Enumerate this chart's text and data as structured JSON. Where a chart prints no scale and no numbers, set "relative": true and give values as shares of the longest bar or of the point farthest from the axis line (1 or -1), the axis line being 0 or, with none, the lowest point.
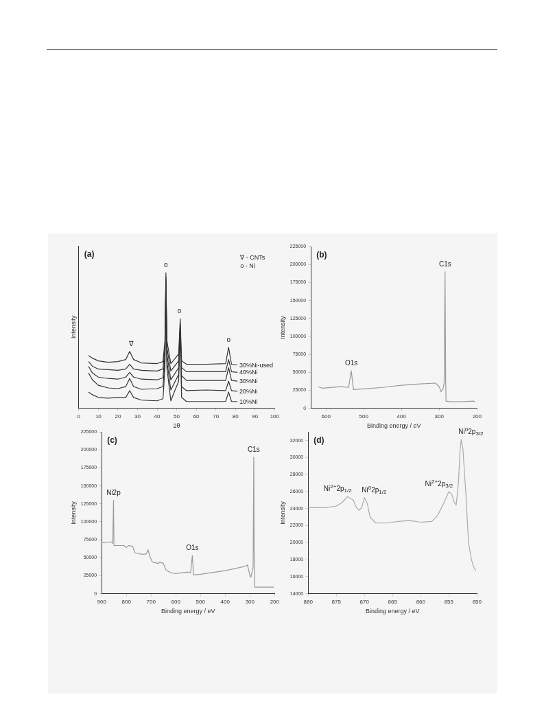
{
  "chart_data": [
    {
      "type": "line",
      "relative": true,
      "xlabel": "2θ",
      "ylabel": "Intensity",
      "xlim": [
        0,
        100
      ],
      "xticks": [
        0,
        10,
        20,
        30,
        40,
        50,
        60,
        70,
        80,
        90,
        100
      ],
      "tick_labels": "x",
      "grid": false,
      "legend": false,
      "x": [
        5,
        7,
        10,
        15,
        20,
        24,
        26,
        28,
        32,
        40,
        43,
        44,
        44.5,
        45,
        47,
        51,
        51.8,
        52.5,
        55,
        65,
        75,
        76.5,
        78,
        81
      ],
      "series": [
        {
          "name": "30%Ni-used",
          "color": "#333333",
          "values": [
            0.39,
            0.37,
            0.35,
            0.34,
            0.345,
            0.36,
            0.42,
            0.36,
            0.335,
            0.33,
            0.345,
            0.5,
            1.0,
            0.5,
            0.33,
            0.4,
            0.66,
            0.35,
            0.325,
            0.325,
            0.33,
            0.45,
            0.325,
            0.32
          ]
        },
        {
          "name": "40%Ni",
          "color": "#333333",
          "values": [
            0.345,
            0.31,
            0.29,
            0.285,
            0.28,
            0.29,
            0.325,
            0.29,
            0.28,
            0.275,
            0.29,
            0.45,
            0.97,
            0.45,
            0.275,
            0.35,
            0.62,
            0.3,
            0.27,
            0.27,
            0.27,
            0.36,
            0.27,
            0.265
          ]
        },
        {
          "name": "30%Ni",
          "color": "#333333",
          "values": [
            0.31,
            0.26,
            0.23,
            0.22,
            0.215,
            0.23,
            0.265,
            0.23,
            0.215,
            0.21,
            0.225,
            0.4,
            0.95,
            0.4,
            0.21,
            0.3,
            0.6,
            0.24,
            0.205,
            0.205,
            0.205,
            0.3,
            0.205,
            0.2
          ]
        },
        {
          "name": "20%Ni",
          "color": "#333333",
          "values": [
            0.26,
            0.21,
            0.17,
            0.15,
            0.145,
            0.16,
            0.22,
            0.16,
            0.14,
            0.145,
            0.16,
            0.35,
            0.93,
            0.35,
            0.135,
            0.25,
            0.58,
            0.16,
            0.13,
            0.135,
            0.13,
            0.2,
            0.13,
            0.125
          ]
        },
        {
          "name": "10%Ni",
          "color": "#333333",
          "values": [
            0.12,
            0.1,
            0.08,
            0.075,
            0.08,
            0.08,
            0.13,
            0.08,
            0.06,
            0.055,
            0.07,
            0.3,
            0.91,
            0.3,
            0.055,
            0.2,
            0.56,
            0.08,
            0.05,
            0.05,
            0.05,
            0.12,
            0.05,
            0.05
          ]
        }
      ],
      "annotations": [
        "(a)",
        "∇ - CNTs",
        "o - Ni",
        {
          "text": "∇",
          "x": 26,
          "y": 0.42
        },
        {
          "text": "o",
          "x": 44.5,
          "y": 1.0
        },
        {
          "text": "o",
          "x": 51.8,
          "y": 0.66
        },
        {
          "text": "o",
          "x": 76.5,
          "y": 0.45
        }
      ]
    },
    {
      "type": "line",
      "xlabel": "Binding energy / eV",
      "ylabel": "Intensity",
      "xlim": [
        640,
        200
      ],
      "xticks": [
        600,
        500,
        400,
        300,
        200
      ],
      "ylim": [
        0,
        225000
      ],
      "yticks": [
        0,
        25000,
        50000,
        75000,
        100000,
        125000,
        150000,
        175000,
        200000,
        225000
      ],
      "grid": false,
      "legend": false,
      "x": [
        620,
        610,
        560,
        540,
        533,
        527,
        500,
        450,
        400,
        350,
        310,
        300,
        295,
        290,
        287,
        284.5,
        283,
        282,
        270,
        240,
        210,
        205
      ],
      "series": [
        {
          "color": "#999999",
          "values": [
            30000,
            28000,
            30000,
            29000,
            52000,
            26000,
            27000,
            29000,
            32000,
            34000,
            35000,
            30000,
            23000,
            27000,
            35000,
            190000,
            40000,
            10000,
            9000,
            9000,
            10000,
            9000
          ]
        }
      ],
      "annotations": [
        "(b)",
        {
          "text": "O1s",
          "x": 533,
          "y": 52000
        },
        {
          "text": "C1s",
          "x": 284.5,
          "y": 190000
        }
      ]
    },
    {
      "type": "line",
      "xlabel": "Binding energy / eV",
      "ylabel": "Intensity",
      "xlim": [
        900,
        200
      ],
      "xticks": [
        900,
        800,
        700,
        600,
        500,
        400,
        300,
        200
      ],
      "ylim": [
        0,
        225000
      ],
      "yticks": [
        0,
        25000,
        50000,
        75000,
        100000,
        125000,
        150000,
        175000,
        200000,
        225000
      ],
      "grid": false,
      "legend": false,
      "x": [
        900,
        860,
        855,
        852,
        850,
        810,
        800,
        790,
        775,
        765,
        740,
        720,
        712,
        705,
        695,
        670,
        665,
        650,
        640,
        620,
        600,
        550,
        540,
        533,
        528,
        500,
        400,
        320,
        310,
        300,
        296,
        290,
        287,
        284.5,
        283,
        281,
        250,
        210,
        203
      ],
      "series": [
        {
          "color": "#999999",
          "values": [
            71000,
            72000,
            70000,
            130000,
            67000,
            67000,
            64000,
            67000,
            66000,
            57000,
            55000,
            55000,
            61000,
            52000,
            44000,
            42000,
            44000,
            42000,
            33000,
            29000,
            28000,
            30000,
            29000,
            53000,
            26000,
            27000,
            32000,
            38000,
            40000,
            25000,
            23000,
            33000,
            36000,
            190000,
            60000,
            9000,
            9000,
            9000,
            9000
          ]
        }
      ],
      "annotations": [
        "(c)",
        {
          "text": "Ni2p",
          "x": 852,
          "y": 130000
        },
        {
          "text": "O1s",
          "x": 533,
          "y": 53000
        },
        {
          "text": "C1s",
          "x": 284.5,
          "y": 190000
        }
      ]
    },
    {
      "type": "line",
      "xlabel": "Binding energy / eV",
      "ylabel": "Intensity",
      "xlim": [
        880,
        850
      ],
      "xticks": [
        880,
        875,
        870,
        865,
        860,
        855,
        850
      ],
      "ylim": [
        14000,
        33000
      ],
      "yticks": [
        14000,
        16000,
        18000,
        20000,
        22000,
        24000,
        26000,
        28000,
        30000,
        32000
      ],
      "grid": false,
      "legend": false,
      "x": [
        880,
        877,
        875,
        874,
        873,
        872,
        871.5,
        871,
        870.5,
        870,
        869.5,
        869,
        868,
        866,
        864,
        862,
        860,
        858,
        857,
        856,
        855,
        854.5,
        854,
        853.7,
        853.3,
        853,
        852.8,
        852.5,
        852,
        851.5,
        851,
        850.5,
        850.2
      ],
      "series": [
        {
          "color": "#aaaaaa",
          "values": [
            24100,
            24100,
            24300,
            24700,
            25400,
            25000,
            24200,
            23800,
            24100,
            25300,
            24600,
            23000,
            22300,
            22300,
            22500,
            22600,
            22400,
            22500,
            23200,
            24500,
            26000,
            25700,
            24700,
            24400,
            27000,
            31000,
            32100,
            31000,
            26000,
            20000,
            18000,
            17000,
            16700
          ]
        }
      ],
      "annotations": [
        "(d)",
        {
          "text": "Ni$^{2+}$2p$_{1/2}$",
          "x": 873,
          "y": 25400
        },
        {
          "text": "Ni$^{0}$2p$_{1/2}$",
          "x": 870,
          "y": 25300
        },
        {
          "text": "Ni$^{2+}$2p$_{3/2}$",
          "x": 855,
          "y": 26000
        },
        {
          "text": "Ni$^{0}$2p$_{3/2}$",
          "x": 852.8,
          "y": 32100
        }
      ]
    }
  ]
}
